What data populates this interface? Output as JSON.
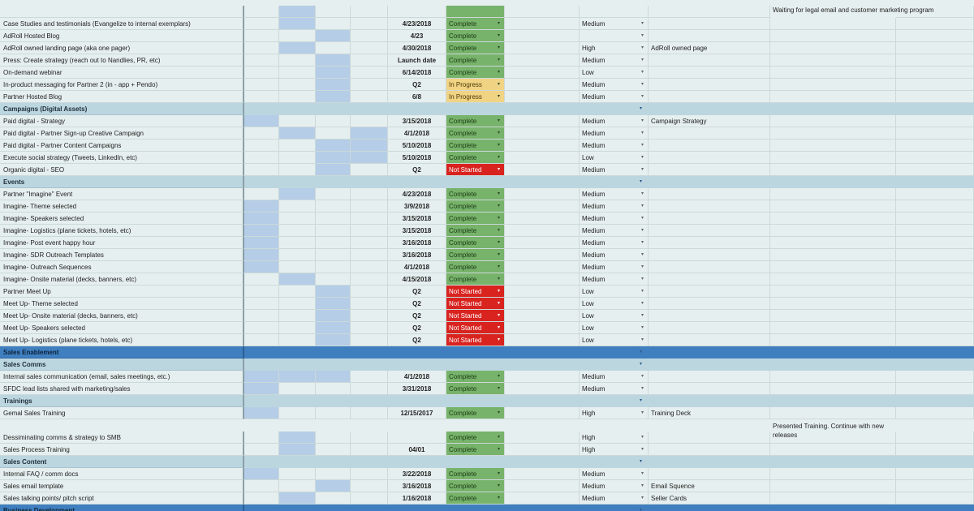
{
  "colors": {
    "complete": "#77b36a",
    "in_progress": "#f1d384",
    "not_started": "#d8231f",
    "timeline_fill": "#b5cde6",
    "section_header": "#bcd6e0",
    "band_header": "#3f7fbf",
    "background": "#e6efef"
  },
  "icons": {
    "dropdown": "▾"
  },
  "notes": {
    "legal_note": "Waiting for legal email and customer marketing program",
    "training_note": "Presented Training. Continue with new releases"
  },
  "rows": [
    {
      "type": "task",
      "task": "Case Studies and testimonials (Evangelize to internal exemplars)",
      "blocks": [
        0,
        1,
        0,
        0
      ],
      "date": "4/23/2018",
      "status": "Complete",
      "priority": "Medium",
      "notes": ""
    },
    {
      "type": "task",
      "task": "AdRoll Hosted Blog",
      "blocks": [
        0,
        0,
        1,
        0
      ],
      "date": "4/23",
      "status": "Complete",
      "priority": "",
      "notes": ""
    },
    {
      "type": "task",
      "task": "AdRoll owned landing page (aka one pager)",
      "blocks": [
        0,
        1,
        0,
        0
      ],
      "date": "4/30/2018",
      "status": "Complete",
      "priority": "High",
      "notes": "AdRoll owned page"
    },
    {
      "type": "task",
      "task": "Press: Create strategy (reach out to Nandlies, PR, etc)",
      "blocks": [
        0,
        0,
        1,
        0
      ],
      "date": "Launch date",
      "status": "Complete",
      "priority": "Medium",
      "notes": ""
    },
    {
      "type": "task",
      "task": "On-demand webinar",
      "blocks": [
        0,
        0,
        1,
        0
      ],
      "date": "6/14/2018",
      "status": "Complete",
      "priority": "Low",
      "notes": ""
    },
    {
      "type": "task",
      "task": "In-product messaging for Partner 2 (in - app + Pendo)",
      "blocks": [
        0,
        0,
        1,
        0
      ],
      "date": "Q2",
      "status": "In Progress",
      "priority": "Medium",
      "notes": ""
    },
    {
      "type": "task",
      "task": "Partner Hosted Blog",
      "blocks": [
        0,
        0,
        1,
        0
      ],
      "date": "6/8",
      "status": "In Progress",
      "priority": "Medium",
      "notes": ""
    },
    {
      "type": "section",
      "task": "Campaigns (Digital Assets)"
    },
    {
      "type": "task",
      "task": "Paid digital - Strategy",
      "blocks": [
        1,
        0,
        0,
        0
      ],
      "date": "3/15/2018",
      "status": "Complete",
      "priority": "Medium",
      "notes": "Campaign Strategy"
    },
    {
      "type": "task",
      "task": "Paid digital - Partner Sign-up Creative Campaign",
      "blocks": [
        0,
        1,
        0,
        1
      ],
      "date": "4/1/2018",
      "status": "Complete",
      "priority": "Medium",
      "notes": ""
    },
    {
      "type": "task",
      "task": "Paid digital - Partner Content Campaigns",
      "blocks": [
        0,
        0,
        1,
        1
      ],
      "date": "5/10/2018",
      "status": "Complete",
      "priority": "Medium",
      "notes": ""
    },
    {
      "type": "task",
      "task": "Execute social strategy (Tweets, LinkedIn, etc)",
      "blocks": [
        0,
        0,
        1,
        1
      ],
      "date": "5/10/2018",
      "status": "Complete",
      "priority": "Low",
      "notes": ""
    },
    {
      "type": "task",
      "task": "Organic digital - SEO",
      "blocks": [
        0,
        0,
        1,
        0
      ],
      "date": "Q2",
      "status": "Not Started",
      "priority": "Medium",
      "notes": ""
    },
    {
      "type": "section",
      "task": "Events"
    },
    {
      "type": "task",
      "task": "Partner \"Imagine\" Event",
      "blocks": [
        0,
        1,
        0,
        0
      ],
      "date": "4/23/2018",
      "status": "Complete",
      "priority": "Medium",
      "notes": ""
    },
    {
      "type": "task",
      "task": " Imagine- Theme selected",
      "blocks": [
        1,
        0,
        0,
        0
      ],
      "date": "3/9/2018",
      "status": "Complete",
      "priority": "Medium",
      "notes": ""
    },
    {
      "type": "task",
      "task": " Imagine- Speakers selected",
      "blocks": [
        1,
        0,
        0,
        0
      ],
      "date": "3/15/2018",
      "status": "Complete",
      "priority": "Medium",
      "notes": ""
    },
    {
      "type": "task",
      "task": " Imagine- Logistics (plane tickets, hotels, etc)",
      "blocks": [
        1,
        0,
        0,
        0
      ],
      "date": "3/15/2018",
      "status": "Complete",
      "priority": "Medium",
      "notes": ""
    },
    {
      "type": "task",
      "task": " Imagine- Post event happy hour",
      "blocks": [
        1,
        0,
        0,
        0
      ],
      "date": "3/16/2018",
      "status": "Complete",
      "priority": "Medium",
      "notes": ""
    },
    {
      "type": "task",
      "task": "Imagine- SDR Outreach Templates",
      "blocks": [
        1,
        0,
        0,
        0
      ],
      "date": "3/16/2018",
      "status": "Complete",
      "priority": "Medium",
      "notes": ""
    },
    {
      "type": "task",
      "task": "Imagine- Outreach Sequences",
      "blocks": [
        1,
        0,
        0,
        0
      ],
      "date": "4/1/2018",
      "status": "Complete",
      "priority": "Medium",
      "notes": ""
    },
    {
      "type": "task",
      "task": " Imagine- Onsite material (decks, banners, etc)",
      "blocks": [
        0,
        1,
        0,
        0
      ],
      "date": "4/15/2018",
      "status": "Complete",
      "priority": "Medium",
      "notes": ""
    },
    {
      "type": "task",
      "task": "Partner Meet Up",
      "blocks": [
        0,
        0,
        1,
        0
      ],
      "date": "Q2",
      "status": "Not Started",
      "priority": "Low",
      "notes": ""
    },
    {
      "type": "task",
      "task": " Meet Up- Theme selected",
      "blocks": [
        0,
        0,
        1,
        0
      ],
      "date": "Q2",
      "status": "Not Started",
      "priority": "Low",
      "notes": ""
    },
    {
      "type": "task",
      "task": " Meet Up- Onsite material (decks, banners, etc)",
      "blocks": [
        0,
        0,
        1,
        0
      ],
      "date": "Q2",
      "status": "Not Started",
      "priority": "Low",
      "notes": ""
    },
    {
      "type": "task",
      "task": " Meet Up- Speakers selected",
      "blocks": [
        0,
        0,
        1,
        0
      ],
      "date": "Q2",
      "status": "Not Started",
      "priority": "Low",
      "notes": ""
    },
    {
      "type": "task",
      "task": " Meet Up- Logistics (plane tickets, hotels, etc)",
      "blocks": [
        0,
        0,
        1,
        0
      ],
      "date": "Q2",
      "status": "Not Started",
      "priority": "Low",
      "notes": ""
    },
    {
      "type": "band",
      "task": "Sales Enablement"
    },
    {
      "type": "section",
      "task": "Sales Comms"
    },
    {
      "type": "task",
      "task": "Internal sales communication (email, sales meetings, etc.)",
      "blocks": [
        1,
        1,
        1,
        0
      ],
      "date": "4/1/2018",
      "status": "Complete",
      "priority": "Medium",
      "notes": ""
    },
    {
      "type": "task",
      "task": "SFDC lead lists shared with marketing/sales",
      "blocks": [
        1,
        0,
        0,
        0
      ],
      "date": "3/31/2018",
      "status": "Complete",
      "priority": "Medium",
      "notes": ""
    },
    {
      "type": "section",
      "task": "Trainings"
    },
    {
      "type": "task",
      "task": "Gemal Sales Training",
      "blocks": [
        1,
        0,
        0,
        0
      ],
      "date": "12/15/2017",
      "status": "Complete",
      "priority": "High",
      "notes": "Training Deck"
    },
    {
      "type": "task",
      "task": "Dessiminating comms & strategy to SMB",
      "blocks": [
        0,
        1,
        0,
        0
      ],
      "date": "",
      "status": "Complete",
      "priority": "High",
      "notes": ""
    },
    {
      "type": "task",
      "task": "Sales Process Training",
      "blocks": [
        0,
        1,
        0,
        0
      ],
      "date": "04/01",
      "status": "Complete",
      "priority": "High",
      "notes": ""
    },
    {
      "type": "section",
      "task": "Sales Content"
    },
    {
      "type": "task",
      "task": "Internal FAQ / comm docs",
      "blocks": [
        1,
        0,
        0,
        0
      ],
      "date": "3/22/2018",
      "status": "Complete",
      "priority": "Medium",
      "notes": ""
    },
    {
      "type": "task",
      "task": "Sales email template",
      "blocks": [
        0,
        0,
        1,
        0
      ],
      "date": "3/16/2018",
      "status": "Complete",
      "priority": "Medium",
      "notes": "Email Squence"
    },
    {
      "type": "task",
      "task": "Sales talking points/ pitch script",
      "blocks": [
        0,
        1,
        0,
        0
      ],
      "date": "1/16/2018",
      "status": "Complete",
      "priority": "Medium",
      "notes": "Seller Cards"
    },
    {
      "type": "band",
      "task": "Business Development"
    }
  ]
}
